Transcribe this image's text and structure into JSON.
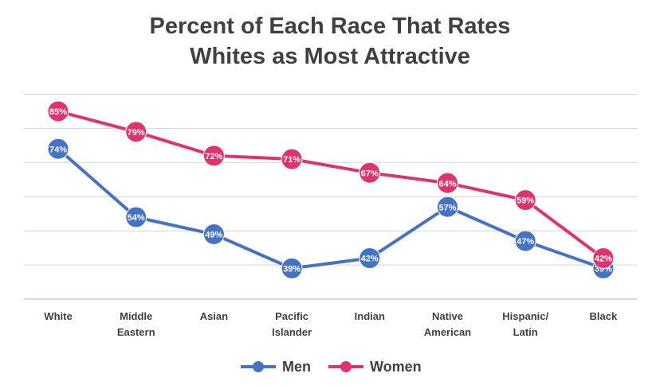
{
  "chart_data": {
    "type": "line",
    "title_line1": "Percent of Each Race That Rates",
    "title_line2": "Whites as Most Attractive",
    "categories": [
      "White",
      "Middle\nEastern",
      "Asian",
      "Pacific\nIslander",
      "Indian",
      "Native\nAmerican",
      "Hispanic/\nLatin",
      "Black"
    ],
    "series": [
      {
        "name": "Men",
        "color": "#4472C4",
        "values": [
          74,
          54,
          49,
          39,
          42,
          57,
          47,
          39
        ],
        "labels": [
          "74%",
          "54%",
          "49%",
          "39%",
          "42%",
          "57%",
          "47%",
          "39%"
        ]
      },
      {
        "name": "Women",
        "color": "#E0336E",
        "values": [
          85,
          79,
          72,
          71,
          67,
          64,
          59,
          42
        ],
        "labels": [
          "85%",
          "79%",
          "72%",
          "71%",
          "67%",
          "64%",
          "59%",
          "42%"
        ]
      }
    ],
    "ylim": [
      30,
      90
    ],
    "grid": true,
    "legend": "bottom",
    "xlabel": "",
    "ylabel": ""
  }
}
